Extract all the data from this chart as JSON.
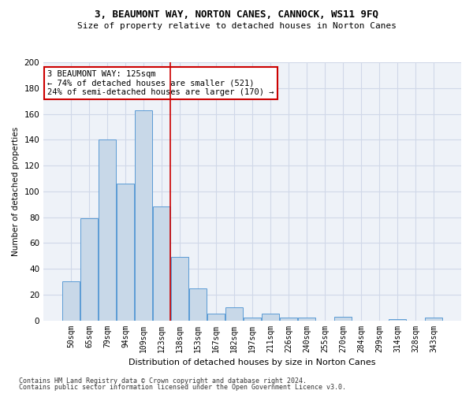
{
  "title1": "3, BEAUMONT WAY, NORTON CANES, CANNOCK, WS11 9FQ",
  "title2": "Size of property relative to detached houses in Norton Canes",
  "xlabel": "Distribution of detached houses by size in Norton Canes",
  "ylabel": "Number of detached properties",
  "footer1": "Contains HM Land Registry data © Crown copyright and database right 2024.",
  "footer2": "Contains public sector information licensed under the Open Government Licence v3.0.",
  "bar_labels": [
    "50sqm",
    "65sqm",
    "79sqm",
    "94sqm",
    "109sqm",
    "123sqm",
    "138sqm",
    "153sqm",
    "167sqm",
    "182sqm",
    "197sqm",
    "211sqm",
    "226sqm",
    "240sqm",
    "255sqm",
    "270sqm",
    "284sqm",
    "299sqm",
    "314sqm",
    "328sqm",
    "343sqm"
  ],
  "bar_values": [
    30,
    79,
    140,
    106,
    163,
    88,
    49,
    25,
    5,
    10,
    2,
    5,
    2,
    2,
    0,
    3,
    0,
    0,
    1,
    0,
    2
  ],
  "bar_color": "#c8d8e8",
  "bar_edgecolor": "#5b9bd5",
  "vline_color": "#cc0000",
  "annotation_text": "3 BEAUMONT WAY: 125sqm\n← 74% of detached houses are smaller (521)\n24% of semi-detached houses are larger (170) →",
  "annotation_box_color": "white",
  "annotation_box_edgecolor": "#cc0000",
  "ylim": [
    0,
    200
  ],
  "yticks": [
    0,
    20,
    40,
    60,
    80,
    100,
    120,
    140,
    160,
    180,
    200
  ],
  "grid_color": "#d0d8e8",
  "background_color": "#eef2f8"
}
